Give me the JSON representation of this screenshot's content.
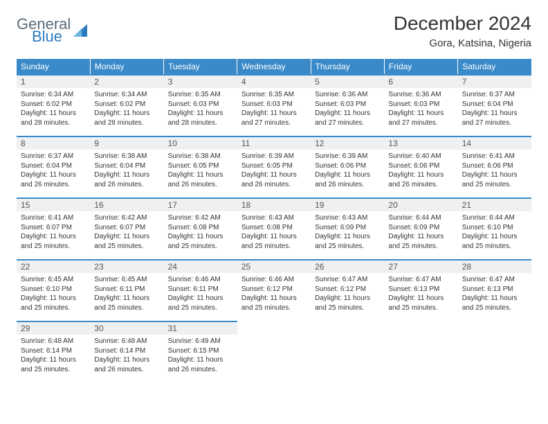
{
  "brand": {
    "text_general": "General",
    "text_blue": "Blue",
    "logo_color_dark": "#2b7bbf",
    "logo_color_light": "#6fb3e0"
  },
  "title": "December 2024",
  "location": "Gora, Katsina, Nigeria",
  "colors": {
    "header_bg": "#3a8ac9",
    "header_text": "#ffffff",
    "daynum_bg": "#eef0f2",
    "border": "#3a8ac9",
    "body_text": "#333333"
  },
  "weekdays": [
    "Sunday",
    "Monday",
    "Tuesday",
    "Wednesday",
    "Thursday",
    "Friday",
    "Saturday"
  ],
  "weeks": [
    [
      {
        "n": "1",
        "sunrise": "Sunrise: 6:34 AM",
        "sunset": "Sunset: 6:02 PM",
        "daylight": "Daylight: 11 hours and 28 minutes."
      },
      {
        "n": "2",
        "sunrise": "Sunrise: 6:34 AM",
        "sunset": "Sunset: 6:02 PM",
        "daylight": "Daylight: 11 hours and 28 minutes."
      },
      {
        "n": "3",
        "sunrise": "Sunrise: 6:35 AM",
        "sunset": "Sunset: 6:03 PM",
        "daylight": "Daylight: 11 hours and 28 minutes."
      },
      {
        "n": "4",
        "sunrise": "Sunrise: 6:35 AM",
        "sunset": "Sunset: 6:03 PM",
        "daylight": "Daylight: 11 hours and 27 minutes."
      },
      {
        "n": "5",
        "sunrise": "Sunrise: 6:36 AM",
        "sunset": "Sunset: 6:03 PM",
        "daylight": "Daylight: 11 hours and 27 minutes."
      },
      {
        "n": "6",
        "sunrise": "Sunrise: 6:36 AM",
        "sunset": "Sunset: 6:03 PM",
        "daylight": "Daylight: 11 hours and 27 minutes."
      },
      {
        "n": "7",
        "sunrise": "Sunrise: 6:37 AM",
        "sunset": "Sunset: 6:04 PM",
        "daylight": "Daylight: 11 hours and 27 minutes."
      }
    ],
    [
      {
        "n": "8",
        "sunrise": "Sunrise: 6:37 AM",
        "sunset": "Sunset: 6:04 PM",
        "daylight": "Daylight: 11 hours and 26 minutes."
      },
      {
        "n": "9",
        "sunrise": "Sunrise: 6:38 AM",
        "sunset": "Sunset: 6:04 PM",
        "daylight": "Daylight: 11 hours and 26 minutes."
      },
      {
        "n": "10",
        "sunrise": "Sunrise: 6:38 AM",
        "sunset": "Sunset: 6:05 PM",
        "daylight": "Daylight: 11 hours and 26 minutes."
      },
      {
        "n": "11",
        "sunrise": "Sunrise: 6:39 AM",
        "sunset": "Sunset: 6:05 PM",
        "daylight": "Daylight: 11 hours and 26 minutes."
      },
      {
        "n": "12",
        "sunrise": "Sunrise: 6:39 AM",
        "sunset": "Sunset: 6:06 PM",
        "daylight": "Daylight: 11 hours and 26 minutes."
      },
      {
        "n": "13",
        "sunrise": "Sunrise: 6:40 AM",
        "sunset": "Sunset: 6:06 PM",
        "daylight": "Daylight: 11 hours and 26 minutes."
      },
      {
        "n": "14",
        "sunrise": "Sunrise: 6:41 AM",
        "sunset": "Sunset: 6:06 PM",
        "daylight": "Daylight: 11 hours and 25 minutes."
      }
    ],
    [
      {
        "n": "15",
        "sunrise": "Sunrise: 6:41 AM",
        "sunset": "Sunset: 6:07 PM",
        "daylight": "Daylight: 11 hours and 25 minutes."
      },
      {
        "n": "16",
        "sunrise": "Sunrise: 6:42 AM",
        "sunset": "Sunset: 6:07 PM",
        "daylight": "Daylight: 11 hours and 25 minutes."
      },
      {
        "n": "17",
        "sunrise": "Sunrise: 6:42 AM",
        "sunset": "Sunset: 6:08 PM",
        "daylight": "Daylight: 11 hours and 25 minutes."
      },
      {
        "n": "18",
        "sunrise": "Sunrise: 6:43 AM",
        "sunset": "Sunset: 6:08 PM",
        "daylight": "Daylight: 11 hours and 25 minutes."
      },
      {
        "n": "19",
        "sunrise": "Sunrise: 6:43 AM",
        "sunset": "Sunset: 6:09 PM",
        "daylight": "Daylight: 11 hours and 25 minutes."
      },
      {
        "n": "20",
        "sunrise": "Sunrise: 6:44 AM",
        "sunset": "Sunset: 6:09 PM",
        "daylight": "Daylight: 11 hours and 25 minutes."
      },
      {
        "n": "21",
        "sunrise": "Sunrise: 6:44 AM",
        "sunset": "Sunset: 6:10 PM",
        "daylight": "Daylight: 11 hours and 25 minutes."
      }
    ],
    [
      {
        "n": "22",
        "sunrise": "Sunrise: 6:45 AM",
        "sunset": "Sunset: 6:10 PM",
        "daylight": "Daylight: 11 hours and 25 minutes."
      },
      {
        "n": "23",
        "sunrise": "Sunrise: 6:45 AM",
        "sunset": "Sunset: 6:11 PM",
        "daylight": "Daylight: 11 hours and 25 minutes."
      },
      {
        "n": "24",
        "sunrise": "Sunrise: 6:46 AM",
        "sunset": "Sunset: 6:11 PM",
        "daylight": "Daylight: 11 hours and 25 minutes."
      },
      {
        "n": "25",
        "sunrise": "Sunrise: 6:46 AM",
        "sunset": "Sunset: 6:12 PM",
        "daylight": "Daylight: 11 hours and 25 minutes."
      },
      {
        "n": "26",
        "sunrise": "Sunrise: 6:47 AM",
        "sunset": "Sunset: 6:12 PM",
        "daylight": "Daylight: 11 hours and 25 minutes."
      },
      {
        "n": "27",
        "sunrise": "Sunrise: 6:47 AM",
        "sunset": "Sunset: 6:13 PM",
        "daylight": "Daylight: 11 hours and 25 minutes."
      },
      {
        "n": "28",
        "sunrise": "Sunrise: 6:47 AM",
        "sunset": "Sunset: 6:13 PM",
        "daylight": "Daylight: 11 hours and 25 minutes."
      }
    ],
    [
      {
        "n": "29",
        "sunrise": "Sunrise: 6:48 AM",
        "sunset": "Sunset: 6:14 PM",
        "daylight": "Daylight: 11 hours and 25 minutes."
      },
      {
        "n": "30",
        "sunrise": "Sunrise: 6:48 AM",
        "sunset": "Sunset: 6:14 PM",
        "daylight": "Daylight: 11 hours and 26 minutes."
      },
      {
        "n": "31",
        "sunrise": "Sunrise: 6:49 AM",
        "sunset": "Sunset: 6:15 PM",
        "daylight": "Daylight: 11 hours and 26 minutes."
      },
      null,
      null,
      null,
      null
    ]
  ]
}
